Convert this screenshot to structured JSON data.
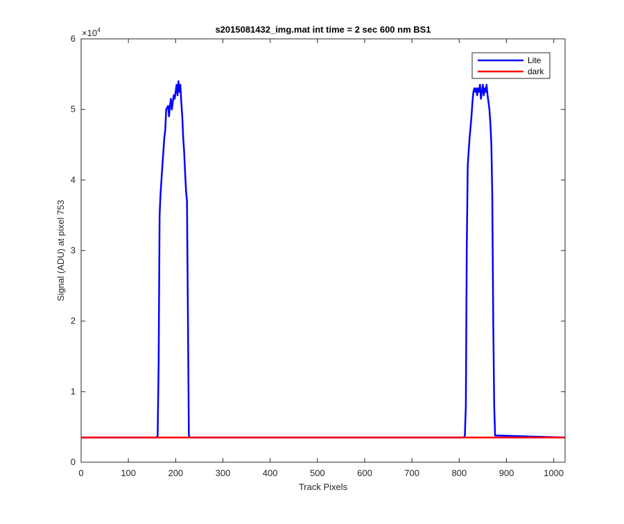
{
  "chart_data": {
    "type": "line",
    "title": "s2015081432_img.mat int time = 2 sec  600 nm BS1",
    "xlabel": "Track Pixels",
    "ylabel": "Signal (ADU) at pixel 753",
    "xlim": [
      0,
      1024
    ],
    "ylim": [
      0,
      60000
    ],
    "x_ticks": [
      0,
      100,
      200,
      300,
      400,
      500,
      600,
      700,
      800,
      900,
      1000
    ],
    "y_ticks": [
      0,
      10000,
      20000,
      30000,
      40000,
      50000,
      60000
    ],
    "y_tick_labels": [
      "0",
      "1",
      "2",
      "3",
      "4",
      "5",
      "6"
    ],
    "y_exponent_label": "×10",
    "y_exponent": "4",
    "grid": false,
    "legend_position": "top-right",
    "series": [
      {
        "name": "Lite",
        "color": "#0000ff",
        "x": [
          0,
          160,
          162,
          164,
          166,
          168,
          172,
          176,
          178,
          180,
          184,
          186,
          188,
          190,
          192,
          194,
          196,
          198,
          200,
          202,
          204,
          206,
          208,
          210,
          212,
          214,
          216,
          218,
          220,
          222,
          224,
          226,
          228,
          230,
          232,
          810,
          812,
          814,
          816,
          818,
          820,
          822,
          824,
          826,
          828,
          830,
          832,
          834,
          836,
          838,
          840,
          842,
          844,
          846,
          848,
          850,
          852,
          854,
          856,
          858,
          860,
          862,
          864,
          866,
          868,
          870,
          872,
          874,
          876,
          1024
        ],
        "y": [
          3500,
          3500,
          3800,
          14000,
          35000,
          38000,
          42000,
          46000,
          47000,
          50000,
          50500,
          49000,
          50500,
          51500,
          50000,
          51000,
          52000,
          51500,
          52500,
          53500,
          52000,
          54000,
          52500,
          53500,
          51000,
          49000,
          46000,
          44000,
          41000,
          38500,
          37000,
          20000,
          3800,
          3500,
          3500,
          3500,
          3800,
          8000,
          30000,
          42000,
          44000,
          46000,
          47500,
          49000,
          51000,
          52500,
          53000,
          52500,
          53000,
          52000,
          53000,
          52500,
          53500,
          51500,
          52500,
          53500,
          52000,
          53000,
          52500,
          53500,
          52000,
          51000,
          50000,
          48000,
          45000,
          38000,
          20000,
          8000,
          3800,
          3500
        ]
      },
      {
        "name": "dark",
        "color": "#ff0000",
        "x": [
          0,
          1024
        ],
        "y": [
          3500,
          3500
        ]
      }
    ]
  }
}
